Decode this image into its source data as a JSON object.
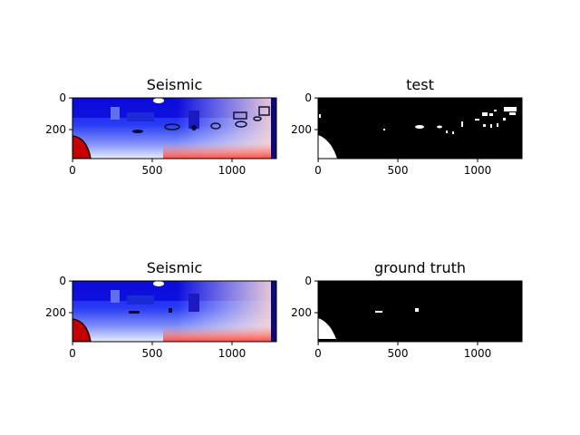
{
  "figure": {
    "background": "#ffffff"
  },
  "chart_data": [
    {
      "type": "heatmap",
      "title": "Seismic",
      "colormap": "seismic",
      "xticks": [
        "0",
        "500",
        "1000"
      ],
      "yticks": [
        "0",
        "200"
      ],
      "xlim": [
        0,
        1280
      ],
      "ylim": [
        384,
        0
      ],
      "notes_colors": [
        "#00008b",
        "#0000ff",
        "#ffffff",
        "#ff0000",
        "#8b0000"
      ]
    },
    {
      "type": "heatmap",
      "title": "test",
      "colormap": "binary",
      "xticks": [
        "0",
        "500",
        "1000"
      ],
      "yticks": [
        "0",
        "200"
      ],
      "xlim": [
        0,
        1280
      ],
      "ylim": [
        384,
        0
      ]
    },
    {
      "type": "heatmap",
      "title": "Seismic",
      "colormap": "seismic",
      "xticks": [
        "0",
        "500",
        "1000"
      ],
      "yticks": [
        "0",
        "200"
      ],
      "xlim": [
        0,
        1280
      ],
      "ylim": [
        384,
        0
      ]
    },
    {
      "type": "heatmap",
      "title": "ground truth",
      "colormap": "binary",
      "xticks": [
        "0",
        "500",
        "1000"
      ],
      "yticks": [
        "0",
        "200"
      ],
      "xlim": [
        0,
        1280
      ],
      "ylim": [
        384,
        0
      ]
    }
  ]
}
